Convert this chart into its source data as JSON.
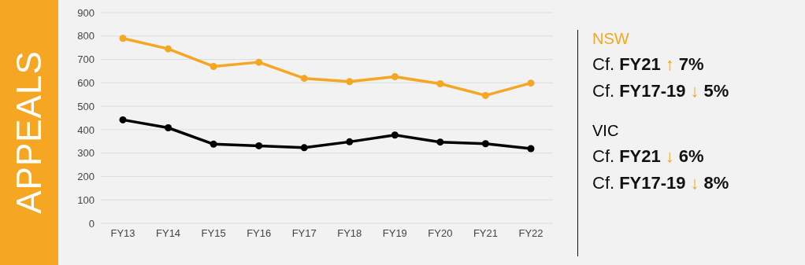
{
  "chart_data": {
    "type": "line",
    "title": "APPEALS",
    "categories": [
      "FY13",
      "FY14",
      "FY15",
      "FY16",
      "FY17",
      "FY18",
      "FY19",
      "FY20",
      "FY21",
      "FY22"
    ],
    "series": [
      {
        "name": "NSW",
        "color": "#f5a623",
        "values": [
          790,
          745,
          670,
          688,
          619,
          605,
          626,
          596,
          546,
          599
        ]
      },
      {
        "name": "VIC",
        "color": "#000000",
        "values": [
          442,
          408,
          338,
          331,
          323,
          348,
          377,
          347,
          340,
          319
        ]
      }
    ],
    "ylim": [
      0,
      900
    ],
    "yticks": [
      0,
      100,
      200,
      300,
      400,
      500,
      600,
      700,
      800,
      900
    ],
    "grid": "y",
    "legend": "right",
    "marker": "circle",
    "line_style": "solid",
    "annotations": [
      "Cf. FY21 ↑ 7%",
      "Cf. FY17-19 ↓ 5%",
      "Cf. FY21 ↓ 6%",
      "Cf. FY17-19 ↓ 8%"
    ]
  }
}
